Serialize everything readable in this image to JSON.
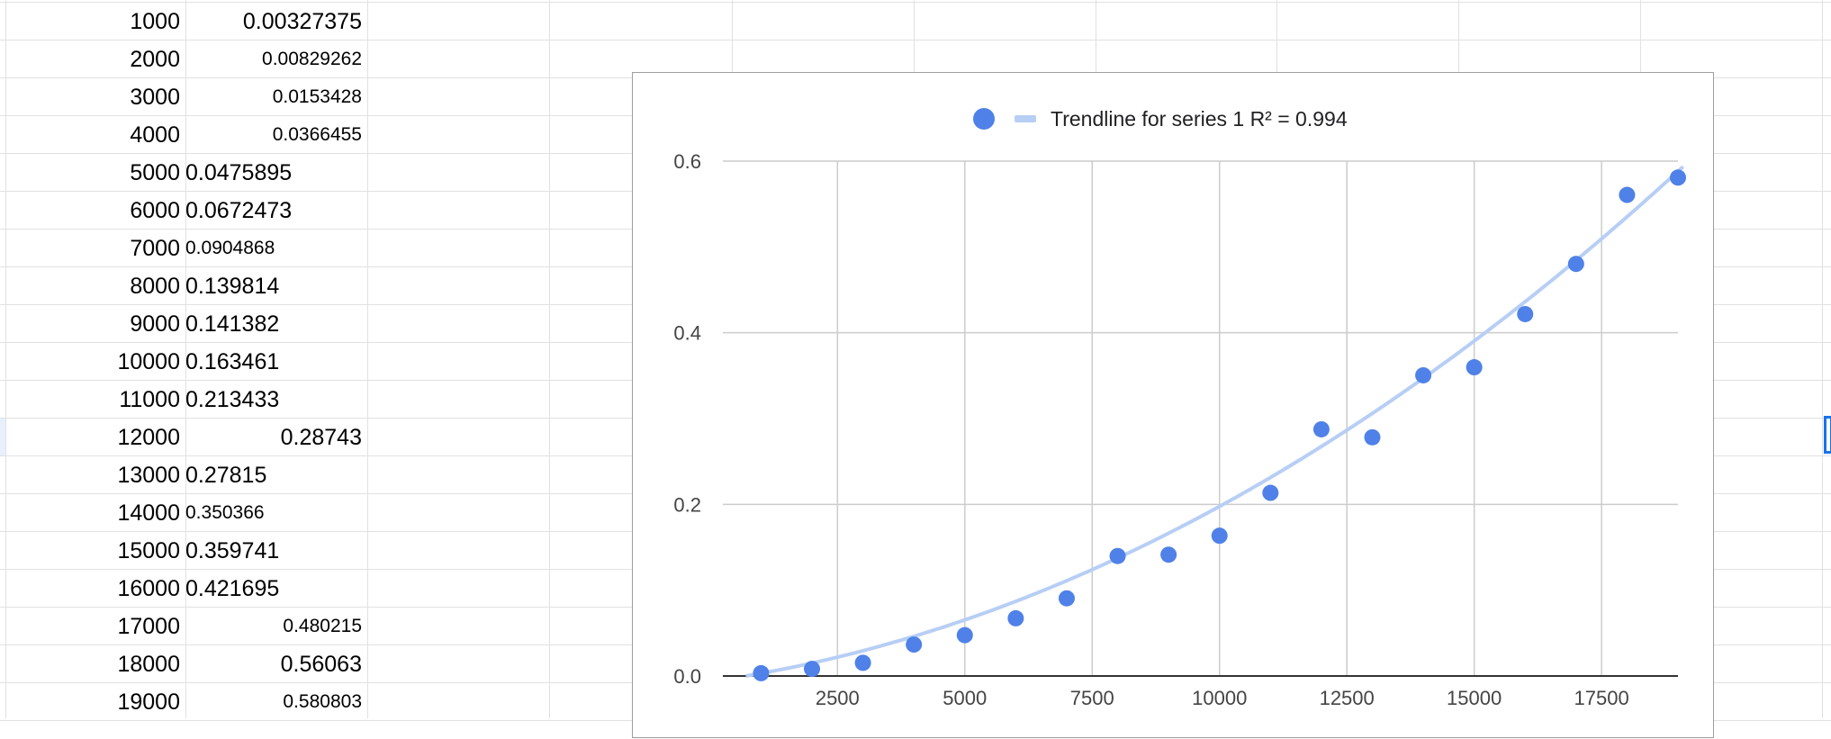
{
  "sheet": {
    "rows": [
      {
        "a": "1000",
        "b": "0.00327375",
        "align": "right",
        "small": false
      },
      {
        "a": "2000",
        "b": "0.00829262",
        "align": "right",
        "small": true
      },
      {
        "a": "3000",
        "b": "0.0153428",
        "align": "right",
        "small": true
      },
      {
        "a": "4000",
        "b": "0.0366455",
        "align": "right",
        "small": true
      },
      {
        "a": "5000",
        "b": "0.0475895",
        "align": "left",
        "small": false
      },
      {
        "a": "6000",
        "b": "0.0672473",
        "align": "left",
        "small": false
      },
      {
        "a": "7000",
        "b": "0.0904868",
        "align": "left",
        "small": true
      },
      {
        "a": "8000",
        "b": "0.139814",
        "align": "left",
        "small": false
      },
      {
        "a": "9000",
        "b": "0.141382",
        "align": "left",
        "small": false
      },
      {
        "a": "10000",
        "b": "0.163461",
        "align": "left",
        "small": false
      },
      {
        "a": "11000",
        "b": "0.213433",
        "align": "left",
        "small": false
      },
      {
        "a": "12000",
        "b": "0.28743",
        "align": "right",
        "small": false
      },
      {
        "a": "13000",
        "b": "0.27815",
        "align": "left",
        "small": false
      },
      {
        "a": "14000",
        "b": "0.350366",
        "align": "left",
        "small": true
      },
      {
        "a": "15000",
        "b": "0.359741",
        "align": "left",
        "small": false
      },
      {
        "a": "16000",
        "b": "0.421695",
        "align": "left",
        "small": false
      },
      {
        "a": "17000",
        "b": "0.480215",
        "align": "right",
        "small": true
      },
      {
        "a": "18000",
        "b": "0.56063",
        "align": "right",
        "small": false
      },
      {
        "a": "19000",
        "b": "0.580803",
        "align": "right",
        "small": true
      }
    ]
  },
  "chart_data": {
    "type": "scatter",
    "title": "",
    "xlabel": "",
    "ylabel": "",
    "xlim": [
      250,
      19000
    ],
    "ylim": [
      0,
      0.6
    ],
    "x_ticks": [
      "2500",
      "5000",
      "7500",
      "10000",
      "12500",
      "15000",
      "17500"
    ],
    "y_ticks": [
      "0.0",
      "0.2",
      "0.4",
      "0.6"
    ],
    "grid": true,
    "legend_position": "top",
    "series": [
      {
        "x": [
          1000,
          2000,
          3000,
          4000,
          5000,
          6000,
          7000,
          8000,
          9000,
          10000,
          11000,
          12000,
          13000,
          14000,
          15000,
          16000,
          17000,
          18000,
          19000
        ],
        "y": [
          0.00327375,
          0.00829262,
          0.0153428,
          0.0366455,
          0.0475895,
          0.0672473,
          0.0904868,
          0.139814,
          0.141382,
          0.163461,
          0.213433,
          0.28743,
          0.27815,
          0.350366,
          0.359741,
          0.421695,
          0.480215,
          0.56063,
          0.580803
        ],
        "color": "#4f81e8"
      }
    ],
    "trendline": {
      "label": "Trendline for series 1 R² = 0.994",
      "type": "polynomial",
      "coefficients": [
        1.21e-09,
        8.3e-06,
        -0.00637
      ],
      "color": "#b7cef5"
    }
  }
}
